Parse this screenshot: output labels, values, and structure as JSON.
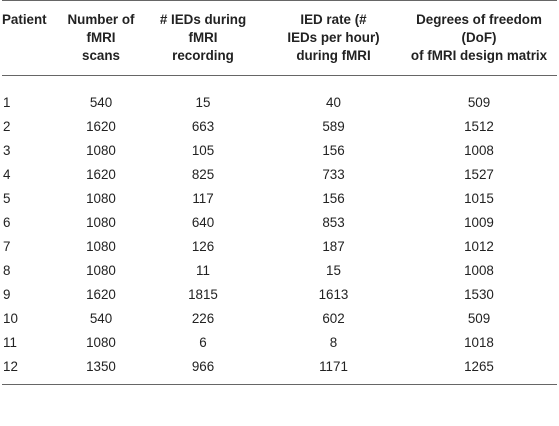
{
  "table": {
    "headers": [
      [
        "Patient"
      ],
      [
        "Number of",
        "fMRI",
        "scans"
      ],
      [
        "# IEDs during",
        "fMRI",
        "recording"
      ],
      [
        "IED rate (#",
        "IEDs per hour)",
        "during fMRI"
      ],
      [
        "Degrees of freedom",
        "(DoF)",
        "of fMRI design matrix"
      ]
    ],
    "rows": [
      [
        "1",
        "540",
        "15",
        "40",
        "509"
      ],
      [
        "2",
        "1620",
        "663",
        "589",
        "1512"
      ],
      [
        "3",
        "1080",
        "105",
        "156",
        "1008"
      ],
      [
        "4",
        "1620",
        "825",
        "733",
        "1527"
      ],
      [
        "5",
        "1080",
        "117",
        "156",
        "1015"
      ],
      [
        "6",
        "1080",
        "640",
        "853",
        "1009"
      ],
      [
        "7",
        "1080",
        "126",
        "187",
        "1012"
      ],
      [
        "8",
        "1080",
        "11",
        "15",
        "1008"
      ],
      [
        "9",
        "1620",
        "1815",
        "1613",
        "1530"
      ],
      [
        "10",
        "540",
        "226",
        "602",
        "509"
      ],
      [
        "11",
        "1080",
        "6",
        "8",
        "1018"
      ],
      [
        "12",
        "1350",
        "966",
        "1171",
        "1265"
      ]
    ]
  }
}
